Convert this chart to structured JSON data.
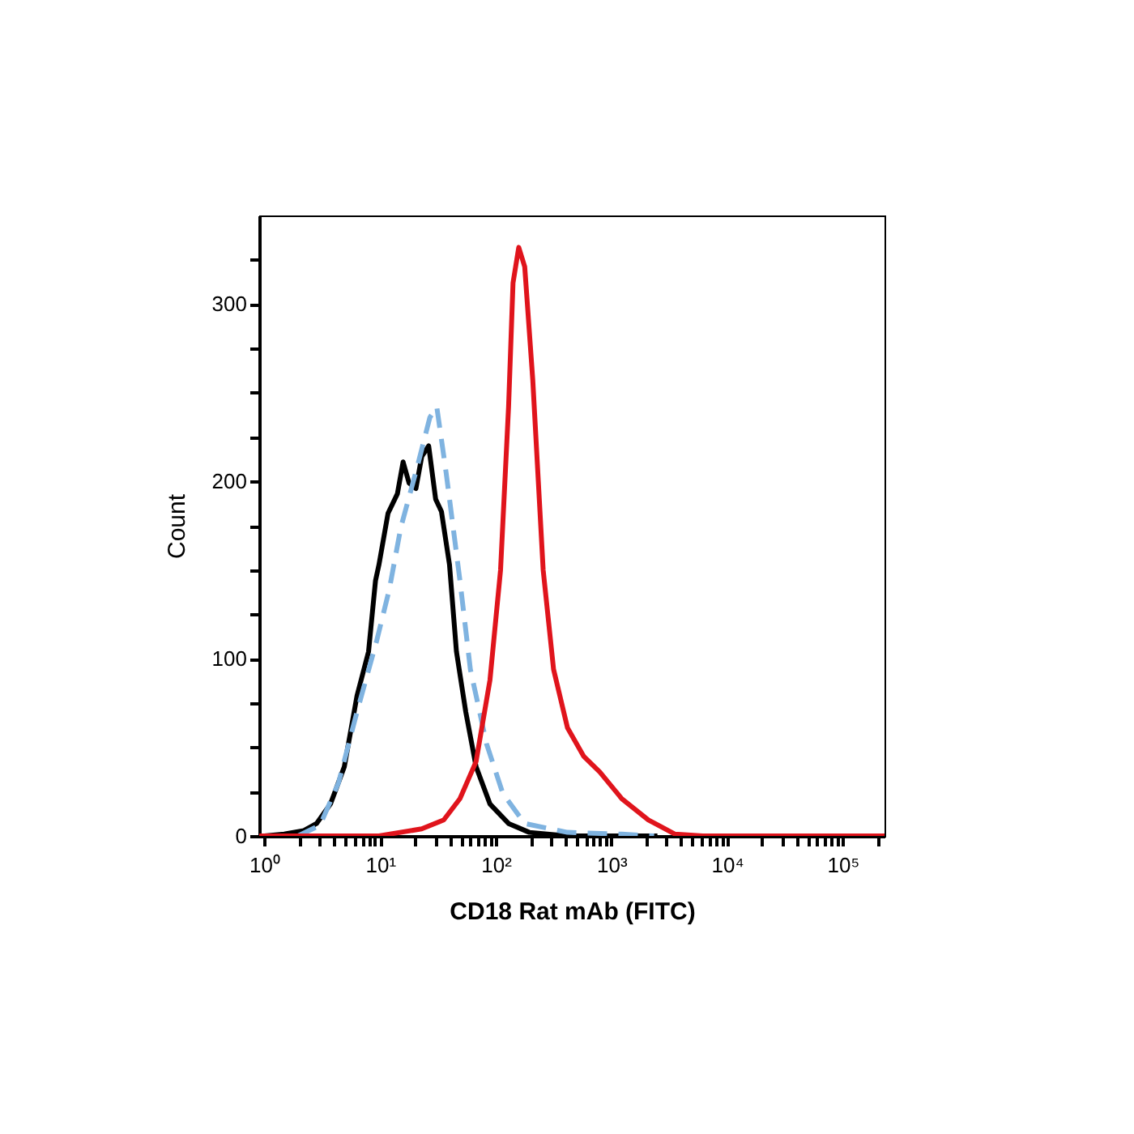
{
  "chart_data": {
    "type": "line",
    "xlabel": "CD18 Rat mAb (FITC)",
    "ylabel": "Count",
    "log": "x",
    "grid": false,
    "marker": "none",
    "xlim": [
      0.9,
      230000
    ],
    "ylim": [
      0,
      350
    ],
    "xticks": [
      {
        "value": 1,
        "label": "10⁰"
      },
      {
        "value": 2,
        "label": null
      },
      {
        "value": 3,
        "label": null
      },
      {
        "value": 4,
        "label": null
      },
      {
        "value": 5,
        "label": null
      },
      {
        "value": 6,
        "label": null
      },
      {
        "value": 7,
        "label": null
      },
      {
        "value": 8,
        "label": null
      },
      {
        "value": 9,
        "label": null
      },
      {
        "value": 10,
        "label": "10¹"
      },
      {
        "value": 20,
        "label": null
      },
      {
        "value": 30,
        "label": null
      },
      {
        "value": 40,
        "label": null
      },
      {
        "value": 50,
        "label": null
      },
      {
        "value": 60,
        "label": null
      },
      {
        "value": 70,
        "label": null
      },
      {
        "value": 80,
        "label": null
      },
      {
        "value": 90,
        "label": null
      },
      {
        "value": 100,
        "label": "10²"
      },
      {
        "value": 200,
        "label": null
      },
      {
        "value": 300,
        "label": null
      },
      {
        "value": 400,
        "label": null
      },
      {
        "value": 500,
        "label": null
      },
      {
        "value": 600,
        "label": null
      },
      {
        "value": 700,
        "label": null
      },
      {
        "value": 800,
        "label": null
      },
      {
        "value": 900,
        "label": null
      },
      {
        "value": 1000,
        "label": "10³"
      },
      {
        "value": 2000,
        "label": null
      },
      {
        "value": 3000,
        "label": null
      },
      {
        "value": 4000,
        "label": null
      },
      {
        "value": 5000,
        "label": null
      },
      {
        "value": 6000,
        "label": null
      },
      {
        "value": 7000,
        "label": null
      },
      {
        "value": 8000,
        "label": null
      },
      {
        "value": 9000,
        "label": null
      },
      {
        "value": 10000,
        "label": "10⁴"
      },
      {
        "value": 20000,
        "label": null
      },
      {
        "value": 30000,
        "label": null
      },
      {
        "value": 40000,
        "label": null
      },
      {
        "value": 50000,
        "label": null
      },
      {
        "value": 60000,
        "label": null
      },
      {
        "value": 70000,
        "label": null
      },
      {
        "value": 80000,
        "label": null
      },
      {
        "value": 90000,
        "label": null
      },
      {
        "value": 100000,
        "label": "10⁵"
      },
      {
        "value": 200000,
        "label": null
      }
    ],
    "yticks": [
      0,
      {
        "value": 25,
        "label": null
      },
      {
        "value": 50,
        "label": null
      },
      {
        "value": 75,
        "label": null
      },
      100,
      {
        "value": 125,
        "label": null
      },
      {
        "value": 150,
        "label": null
      },
      {
        "value": 175,
        "label": null
      },
      200,
      {
        "value": 225,
        "label": null
      },
      {
        "value": 250,
        "label": null
      },
      {
        "value": 275,
        "label": null
      },
      300,
      {
        "value": 325,
        "label": null
      }
    ],
    "series": [
      {
        "color": "#000000",
        "line_style": "solid",
        "x": [
          1.0,
          1.48,
          2.19,
          2.82,
          3.72,
          4.9,
          6.31,
          7.94,
          9.12,
          9.77,
          11.7,
          14.1,
          15.8,
          17.8,
          20.4,
          22.9,
          26.3,
          30.2,
          33.9,
          39.8,
          45.7,
          55.0,
          67.6,
          89.1,
          129,
          195,
          417,
          1230,
          2500
        ],
        "values": [
          0,
          1,
          3,
          7,
          18,
          39,
          79,
          104,
          144,
          153,
          182,
          193,
          211,
          199,
          196,
          214,
          220,
          190,
          183,
          153,
          104,
          70,
          39,
          18,
          7,
          2,
          0,
          0,
          0
        ]
      },
      {
        "color": "#7fb3e0",
        "line_style": "dashed",
        "x": [
          1.95,
          3.02,
          4.37,
          6.31,
          9.33,
          12.0,
          15.1,
          20.9,
          26.9,
          30.9,
          37.2,
          49.0,
          60.3,
          83.2,
          115,
          178,
          417,
          1230,
          2340
        ],
        "values": [
          0,
          6,
          30,
          70,
          110,
          139,
          174,
          208,
          236,
          242,
          205,
          144,
          94,
          52,
          24,
          7,
          2,
          1,
          0
        ]
      },
      {
        "color": "#e0141c",
        "line_style": "solid",
        "x": [
          0.9,
          9.77,
          22.9,
          35.5,
          49.0,
          67.6,
          89.1,
          110,
          129,
          141,
          158,
          178,
          209,
          257,
          316,
          417,
          575,
          794,
          1230,
          2090,
          3550,
          6170,
          230000
        ],
        "values": [
          0,
          0,
          4,
          9,
          21,
          42,
          88,
          150,
          242,
          312,
          332,
          321,
          257,
          150,
          94,
          61,
          45,
          36,
          21,
          9,
          1,
          0,
          0
        ]
      }
    ]
  }
}
